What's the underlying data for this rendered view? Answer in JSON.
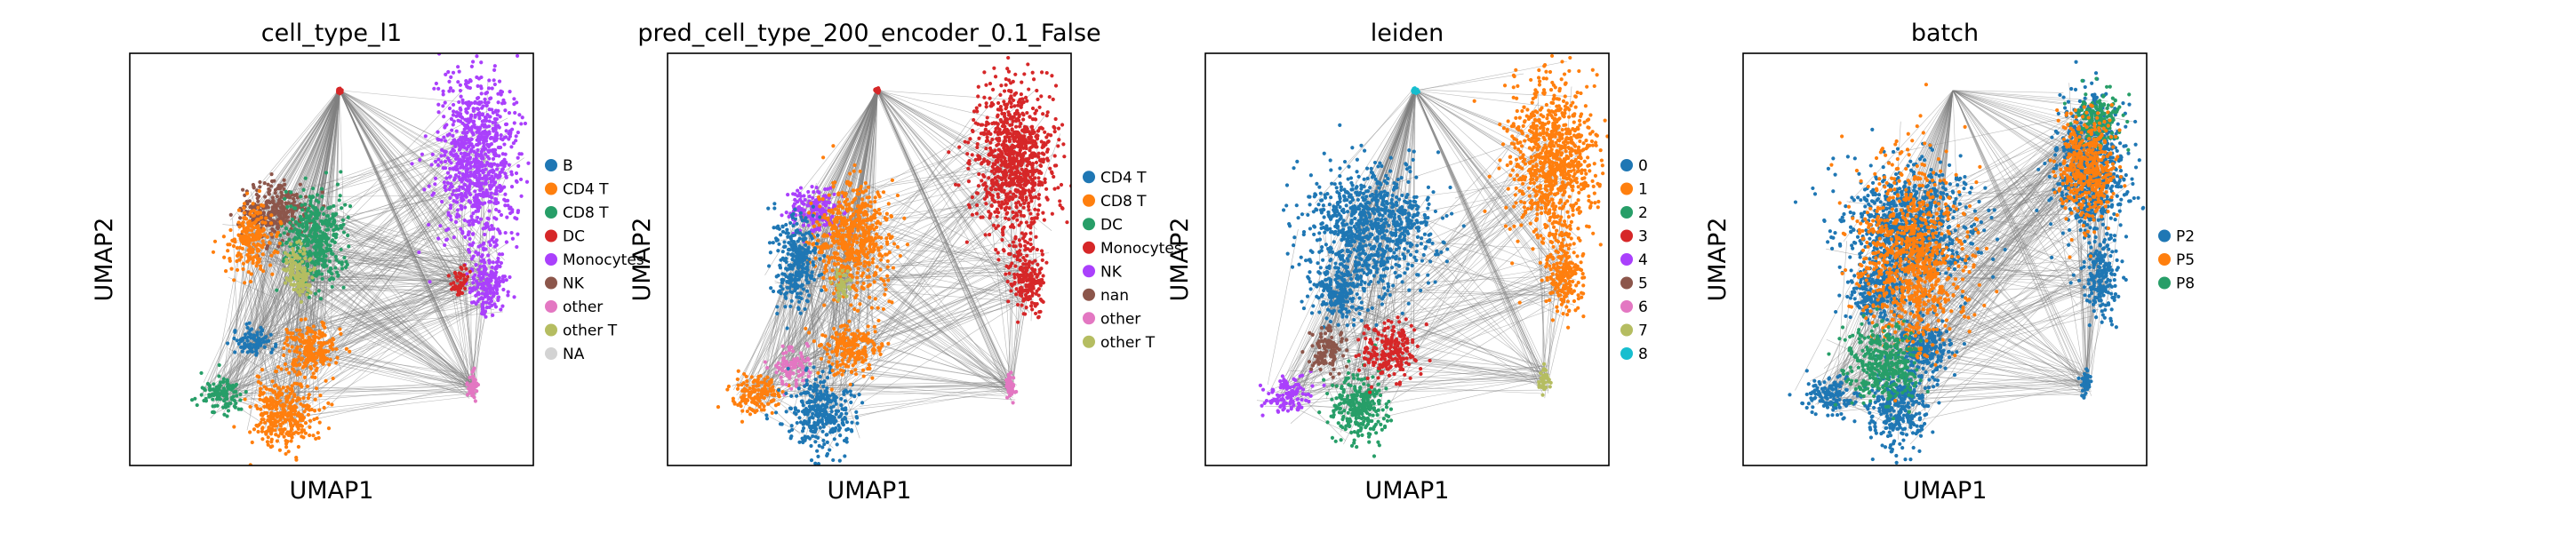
{
  "chart_data": [
    {
      "type": "scatter",
      "title": "cell_type_l1",
      "xlabel": "UMAP1",
      "ylabel": "UMAP2",
      "grid": false,
      "axis_ticks": false,
      "legend_position": "right",
      "edges": "gray graph edges connecting clusters",
      "legend": [
        {
          "label": "B",
          "color": "#1f77b4"
        },
        {
          "label": "CD4 T",
          "color": "#ff7f0e"
        },
        {
          "label": "CD8 T",
          "color": "#279e68"
        },
        {
          "label": "DC",
          "color": "#d62728"
        },
        {
          "label": "Monocytes",
          "color": "#aa40fc"
        },
        {
          "label": "NK",
          "color": "#8c564b"
        },
        {
          "label": "other",
          "color": "#e377c2"
        },
        {
          "label": "other T",
          "color": "#b5bd61"
        },
        {
          "label": "NA",
          "color": "#d3d3d3"
        }
      ],
      "clusters": [
        {
          "group": "Monocytes",
          "x": 0.86,
          "y": 0.74,
          "rx": 0.09,
          "ry": 0.18
        },
        {
          "group": "Monocytes",
          "x": 0.89,
          "y": 0.45,
          "rx": 0.04,
          "ry": 0.08
        },
        {
          "group": "NK",
          "x": 0.36,
          "y": 0.62,
          "rx": 0.08,
          "ry": 0.06
        },
        {
          "group": "CD8 T",
          "x": 0.46,
          "y": 0.55,
          "rx": 0.07,
          "ry": 0.1
        },
        {
          "group": "other T",
          "x": 0.41,
          "y": 0.48,
          "rx": 0.03,
          "ry": 0.05
        },
        {
          "group": "CD4 T",
          "x": 0.3,
          "y": 0.55,
          "rx": 0.05,
          "ry": 0.07
        },
        {
          "group": "CD8 T",
          "x": 0.23,
          "y": 0.17,
          "rx": 0.05,
          "ry": 0.04
        },
        {
          "group": "B",
          "x": 0.31,
          "y": 0.3,
          "rx": 0.05,
          "ry": 0.03
        },
        {
          "group": "CD4 T",
          "x": 0.38,
          "y": 0.13,
          "rx": 0.07,
          "ry": 0.08
        },
        {
          "group": "CD4 T",
          "x": 0.45,
          "y": 0.28,
          "rx": 0.06,
          "ry": 0.06
        },
        {
          "group": "DC",
          "x": 0.82,
          "y": 0.45,
          "rx": 0.02,
          "ry": 0.04
        },
        {
          "group": "DC",
          "x": 0.52,
          "y": 0.91,
          "rx": 0.005,
          "ry": 0.005
        },
        {
          "group": "other",
          "x": 0.85,
          "y": 0.19,
          "rx": 0.012,
          "ry": 0.03
        },
        {
          "group": "other T",
          "x": 0.43,
          "y": 0.44,
          "rx": 0.02,
          "ry": 0.03
        }
      ]
    },
    {
      "type": "scatter",
      "title": "pred_cell_type_200_encoder_0.1_False",
      "xlabel": "UMAP1",
      "ylabel": "UMAP2",
      "grid": false,
      "axis_ticks": false,
      "legend_position": "right",
      "edges": "gray graph edges connecting clusters",
      "legend": [
        {
          "label": "CD4 T",
          "color": "#1f77b4"
        },
        {
          "label": "CD8 T",
          "color": "#ff7f0e"
        },
        {
          "label": "DC",
          "color": "#279e68"
        },
        {
          "label": "Monocytes",
          "color": "#d62728"
        },
        {
          "label": "NK",
          "color": "#aa40fc"
        },
        {
          "label": "nan",
          "color": "#8c564b"
        },
        {
          "label": "other",
          "color": "#e377c2"
        },
        {
          "label": "other T",
          "color": "#b5bd61"
        }
      ],
      "clusters": [
        {
          "group": "Monocytes",
          "x": 0.86,
          "y": 0.74,
          "rx": 0.09,
          "ry": 0.18
        },
        {
          "group": "Monocytes",
          "x": 0.89,
          "y": 0.45,
          "rx": 0.04,
          "ry": 0.08
        },
        {
          "group": "NK",
          "x": 0.36,
          "y": 0.62,
          "rx": 0.06,
          "ry": 0.05
        },
        {
          "group": "CD8 T",
          "x": 0.46,
          "y": 0.55,
          "rx": 0.08,
          "ry": 0.12
        },
        {
          "group": "CD4 T",
          "x": 0.32,
          "y": 0.5,
          "rx": 0.05,
          "ry": 0.1
        },
        {
          "group": "CD8 T",
          "x": 0.22,
          "y": 0.17,
          "rx": 0.06,
          "ry": 0.04
        },
        {
          "group": "other",
          "x": 0.31,
          "y": 0.24,
          "rx": 0.04,
          "ry": 0.04
        },
        {
          "group": "CD4 T",
          "x": 0.38,
          "y": 0.13,
          "rx": 0.07,
          "ry": 0.08
        },
        {
          "group": "CD8 T",
          "x": 0.45,
          "y": 0.28,
          "rx": 0.06,
          "ry": 0.06
        },
        {
          "group": "Monocytes",
          "x": 0.52,
          "y": 0.91,
          "rx": 0.005,
          "ry": 0.005
        },
        {
          "group": "other",
          "x": 0.85,
          "y": 0.19,
          "rx": 0.012,
          "ry": 0.03
        },
        {
          "group": "other T",
          "x": 0.43,
          "y": 0.44,
          "rx": 0.02,
          "ry": 0.03
        }
      ]
    },
    {
      "type": "scatter",
      "title": "leiden",
      "xlabel": "UMAP1",
      "ylabel": "UMAP2",
      "grid": false,
      "axis_ticks": false,
      "legend_position": "right",
      "edges": "gray graph edges connecting clusters",
      "legend": [
        {
          "label": "0",
          "color": "#1f77b4"
        },
        {
          "label": "1",
          "color": "#ff7f0e"
        },
        {
          "label": "2",
          "color": "#279e68"
        },
        {
          "label": "3",
          "color": "#d62728"
        },
        {
          "label": "4",
          "color": "#aa40fc"
        },
        {
          "label": "5",
          "color": "#8c564b"
        },
        {
          "label": "6",
          "color": "#e377c2"
        },
        {
          "label": "7",
          "color": "#b5bd61"
        },
        {
          "label": "8",
          "color": "#17becf"
        }
      ],
      "clusters": [
        {
          "group": "1",
          "x": 0.86,
          "y": 0.74,
          "rx": 0.09,
          "ry": 0.18
        },
        {
          "group": "1",
          "x": 0.89,
          "y": 0.45,
          "rx": 0.04,
          "ry": 0.08
        },
        {
          "group": "0",
          "x": 0.41,
          "y": 0.58,
          "rx": 0.14,
          "ry": 0.13
        },
        {
          "group": "0",
          "x": 0.33,
          "y": 0.42,
          "rx": 0.06,
          "ry": 0.06
        },
        {
          "group": "4",
          "x": 0.21,
          "y": 0.17,
          "rx": 0.05,
          "ry": 0.04
        },
        {
          "group": "5",
          "x": 0.3,
          "y": 0.28,
          "rx": 0.04,
          "ry": 0.05
        },
        {
          "group": "2",
          "x": 0.38,
          "y": 0.14,
          "rx": 0.06,
          "ry": 0.08
        },
        {
          "group": "3",
          "x": 0.46,
          "y": 0.28,
          "rx": 0.06,
          "ry": 0.06
        },
        {
          "group": "7",
          "x": 0.84,
          "y": 0.21,
          "rx": 0.012,
          "ry": 0.03
        },
        {
          "group": "8",
          "x": 0.52,
          "y": 0.91,
          "rx": 0.005,
          "ry": 0.005
        }
      ]
    },
    {
      "type": "scatter",
      "title": "batch",
      "xlabel": "UMAP1",
      "ylabel": "UMAP2",
      "grid": false,
      "axis_ticks": false,
      "legend_position": "right",
      "edges": "gray graph edges connecting clusters",
      "legend": [
        {
          "label": "P2",
          "color": "#1f77b4"
        },
        {
          "label": "P5",
          "color": "#ff7f0e"
        },
        {
          "label": "P8",
          "color": "#279e68"
        }
      ],
      "clusters": [
        {
          "group": "P2",
          "x": 0.86,
          "y": 0.72,
          "rx": 0.08,
          "ry": 0.15
        },
        {
          "group": "P8",
          "x": 0.88,
          "y": 0.84,
          "rx": 0.05,
          "ry": 0.06
        },
        {
          "group": "P2",
          "x": 0.89,
          "y": 0.45,
          "rx": 0.04,
          "ry": 0.08
        },
        {
          "group": "P2",
          "x": 0.41,
          "y": 0.58,
          "rx": 0.14,
          "ry": 0.13
        },
        {
          "group": "P2",
          "x": 0.33,
          "y": 0.42,
          "rx": 0.06,
          "ry": 0.06
        },
        {
          "group": "P2",
          "x": 0.22,
          "y": 0.17,
          "rx": 0.06,
          "ry": 0.04
        },
        {
          "group": "P2",
          "x": 0.38,
          "y": 0.14,
          "rx": 0.07,
          "ry": 0.08
        },
        {
          "group": "P2",
          "x": 0.45,
          "y": 0.28,
          "rx": 0.06,
          "ry": 0.06
        },
        {
          "group": "P5",
          "x": 0.42,
          "y": 0.5,
          "rx": 0.12,
          "ry": 0.2
        },
        {
          "group": "P5",
          "x": 0.85,
          "y": 0.72,
          "rx": 0.06,
          "ry": 0.12
        },
        {
          "group": "P8",
          "x": 0.35,
          "y": 0.25,
          "rx": 0.08,
          "ry": 0.08
        },
        {
          "group": "P2",
          "x": 0.85,
          "y": 0.2,
          "rx": 0.012,
          "ry": 0.03
        }
      ]
    }
  ]
}
